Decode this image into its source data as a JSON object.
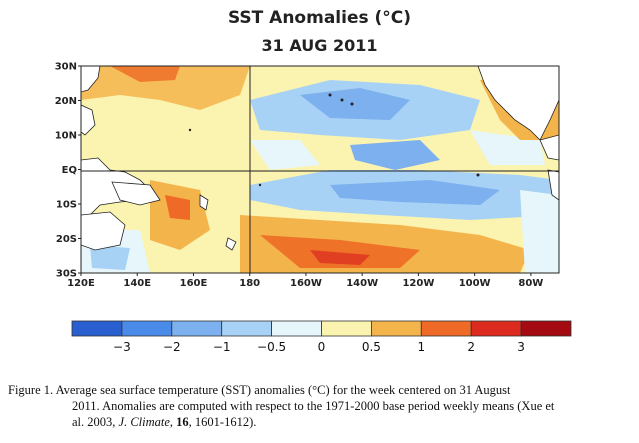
{
  "title": "SST Anomalies (°C)",
  "subtitle": "31 AUG 2011",
  "map": {
    "type": "heatmap",
    "lat_labels": [
      "30N",
      "20N",
      "10N",
      "EQ",
      "10S",
      "20S",
      "30S"
    ],
    "lon_labels": [
      "120E",
      "140E",
      "160E",
      "180",
      "160W",
      "140W",
      "120W",
      "100W",
      "80W"
    ],
    "lat_range": [
      -30,
      30
    ],
    "lon_range": [
      120,
      290
    ]
  },
  "colorbar": {
    "levels": [
      -3,
      -2,
      -1,
      -0.5,
      0,
      0.5,
      1,
      2,
      3
    ],
    "labels": [
      "−3",
      "−2",
      "−1",
      "−0.5",
      "0",
      "0.5",
      "1",
      "2",
      "3"
    ],
    "colors": [
      "#2a5fd0",
      "#4a8ae8",
      "#7cb0ee",
      "#a8d2f5",
      "#e6f6fb",
      "#fbf3b0",
      "#f4b44c",
      "#ee6a26",
      "#dc2a1e",
      "#a40a12"
    ]
  },
  "caption": {
    "line1": "Figure 1. Average sea surface temperature (SST) anomalies (°C) for the week centered on 31 August",
    "line2": "2011.  Anomalies are computed with respect to the 1971-2000 base period weekly means (Xue et",
    "line3_a": "al. 2003, ",
    "line3_journal": "J. Climate",
    "line3_b": ", ",
    "line3_vol": "16",
    "line3_c": ", 1601-1612)."
  }
}
